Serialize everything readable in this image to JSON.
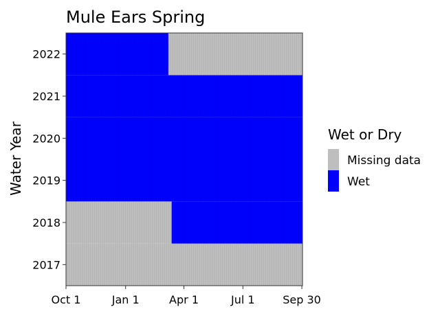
{
  "chart_data": {
    "type": "heatmap",
    "title": "Mule Ears Spring",
    "xlabel": "",
    "ylabel": "Water Year",
    "x_ticks": [
      "Oct 1",
      "Jan 1",
      "Apr 1",
      "Jul 1",
      "Sep 30"
    ],
    "x_tick_days": [
      0,
      92,
      182,
      273,
      364
    ],
    "x_domain_days": [
      0,
      365
    ],
    "y_categories": [
      "2017",
      "2018",
      "2019",
      "2020",
      "2021",
      "2022"
    ],
    "legend": {
      "title": "Wet or Dry",
      "position": "right",
      "entries": [
        {
          "label": "Missing data",
          "color": "#bebebe"
        },
        {
          "label": "Wet",
          "color": "#0000ff"
        }
      ]
    },
    "cells": [
      {
        "year": "2017",
        "start": "Oct 1",
        "end": "Sep 30",
        "status": "Missing data"
      },
      {
        "year": "2018",
        "start": "Oct 1",
        "end": "Mar 12",
        "status": "Missing data"
      },
      {
        "year": "2018",
        "start": "Mar 13",
        "end": "Sep 30",
        "status": "Wet"
      },
      {
        "year": "2019",
        "start": "Oct 1",
        "end": "Sep 30",
        "status": "Wet"
      },
      {
        "year": "2020",
        "start": "Oct 1",
        "end": "Sep 30",
        "status": "Wet"
      },
      {
        "year": "2021",
        "start": "Oct 1",
        "end": "Sep 30",
        "status": "Wet"
      },
      {
        "year": "2022",
        "start": "Oct 1",
        "end": "Mar 7",
        "status": "Wet"
      },
      {
        "year": "2022",
        "start": "Mar 8",
        "end": "Sep 30",
        "status": "Missing data"
      }
    ],
    "cell_day_ranges": [
      [
        0,
        364
      ],
      [
        0,
        162
      ],
      [
        163,
        364
      ],
      [
        0,
        364
      ],
      [
        0,
        364
      ],
      [
        0,
        364
      ],
      [
        0,
        157
      ],
      [
        158,
        364
      ]
    ]
  }
}
